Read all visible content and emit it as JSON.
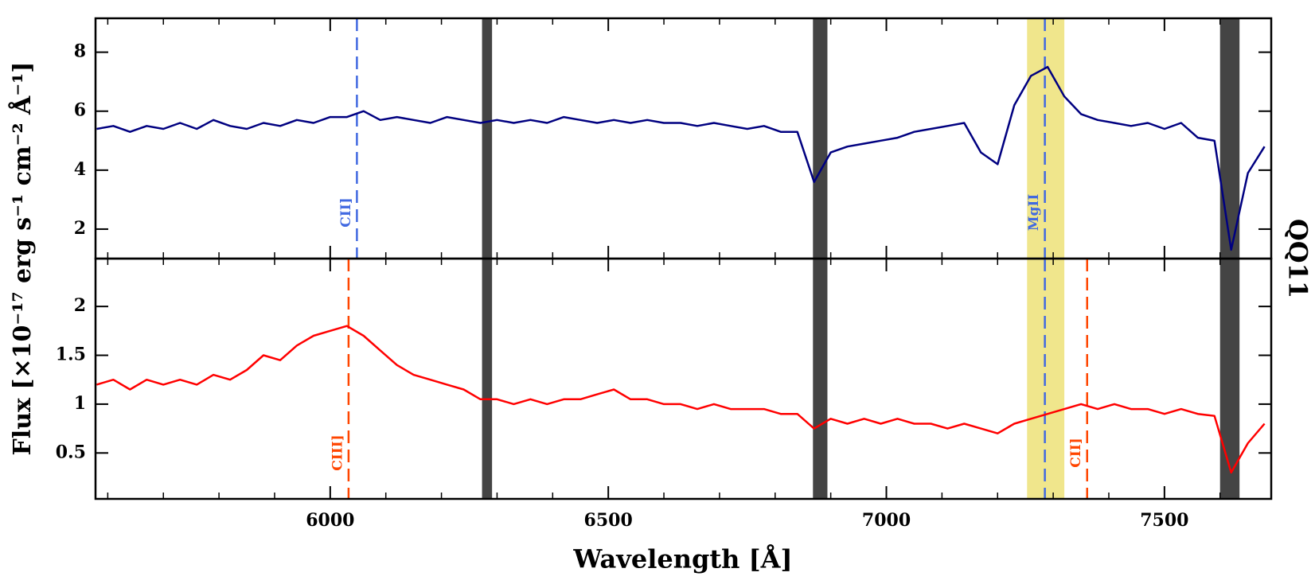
{
  "chart_data": [
    {
      "type": "line",
      "ylabel": "Flux [×10⁻¹⁷ erg s⁻¹ cm⁻² Å⁻¹]",
      "annotation": "QQ11",
      "ylim": [
        1.0,
        9.15
      ],
      "yticks": [
        2,
        4,
        6,
        8
      ],
      "x": [
        5580,
        5610,
        5640,
        5670,
        5700,
        5730,
        5760,
        5790,
        5820,
        5850,
        5880,
        5910,
        5940,
        5970,
        6000,
        6030,
        6060,
        6090,
        6120,
        6150,
        6180,
        6210,
        6240,
        6270,
        6300,
        6330,
        6360,
        6390,
        6420,
        6450,
        6480,
        6510,
        6540,
        6570,
        6600,
        6630,
        6660,
        6690,
        6720,
        6750,
        6780,
        6810,
        6840,
        6870,
        6900,
        6930,
        6960,
        6990,
        7020,
        7050,
        7080,
        7110,
        7140,
        7170,
        7200,
        7230,
        7260,
        7290,
        7320,
        7350,
        7380,
        7410,
        7440,
        7470,
        7500,
        7530,
        7560,
        7590,
        7620,
        7650,
        7680
      ],
      "series": [
        {
          "color": "#000080",
          "values": [
            5.4,
            5.5,
            5.3,
            5.5,
            5.4,
            5.6,
            5.4,
            5.7,
            5.5,
            5.4,
            5.6,
            5.5,
            5.7,
            5.6,
            5.8,
            5.8,
            6.0,
            5.7,
            5.8,
            5.7,
            5.6,
            5.8,
            5.7,
            5.6,
            5.7,
            5.6,
            5.7,
            5.6,
            5.8,
            5.7,
            5.6,
            5.7,
            5.6,
            5.7,
            5.6,
            5.6,
            5.5,
            5.6,
            5.5,
            5.4,
            5.5,
            5.3,
            5.3,
            3.6,
            4.6,
            4.8,
            4.9,
            5.0,
            5.1,
            5.3,
            5.4,
            5.5,
            5.6,
            4.6,
            4.2,
            6.2,
            7.2,
            7.5,
            6.5,
            5.9,
            5.7,
            5.6,
            5.5,
            5.6,
            5.4,
            5.6,
            5.1,
            5.0,
            1.3,
            3.9,
            4.8
          ]
        }
      ],
      "regions": [
        {
          "x": [
            6273,
            6291
          ],
          "color": "#444444"
        },
        {
          "x": [
            6868,
            6894
          ],
          "color": "#444444"
        },
        {
          "x": [
            7253,
            7320
          ],
          "color": "#f0e68c"
        },
        {
          "x": [
            7600,
            7635
          ],
          "color": "#444444"
        }
      ],
      "lines": [
        {
          "x": 6048,
          "label": "CII]",
          "color": "#4169e1"
        },
        {
          "x": 7285,
          "label": "MgII",
          "color": "#4169e1"
        }
      ]
    },
    {
      "type": "line",
      "xlabel": "Wavelength [Å]",
      "xlim": [
        5578,
        7692
      ],
      "xticks": [
        6000,
        6500,
        7000,
        7500
      ],
      "xminorticks": [
        5600,
        5700,
        5800,
        5900,
        6100,
        6200,
        6300,
        6400,
        6600,
        6700,
        6800,
        6900,
        7100,
        7200,
        7300,
        7400,
        7600
      ],
      "ylim": [
        0.03,
        2.49
      ],
      "yticks": [
        0.5,
        1,
        1.5,
        2
      ],
      "x": [
        5580,
        5610,
        5640,
        5670,
        5700,
        5730,
        5760,
        5790,
        5820,
        5850,
        5880,
        5910,
        5940,
        5970,
        6000,
        6030,
        6060,
        6090,
        6120,
        6150,
        6180,
        6210,
        6240,
        6270,
        6300,
        6330,
        6360,
        6390,
        6420,
        6450,
        6480,
        6510,
        6540,
        6570,
        6600,
        6630,
        6660,
        6690,
        6720,
        6750,
        6780,
        6810,
        6840,
        6870,
        6900,
        6930,
        6960,
        6990,
        7020,
        7050,
        7080,
        7110,
        7140,
        7170,
        7200,
        7230,
        7260,
        7290,
        7320,
        7350,
        7380,
        7410,
        7440,
        7470,
        7500,
        7530,
        7560,
        7590,
        7620,
        7650,
        7680
      ],
      "series": [
        {
          "color": "#ff0000",
          "values": [
            1.2,
            1.25,
            1.15,
            1.25,
            1.2,
            1.25,
            1.2,
            1.3,
            1.25,
            1.35,
            1.5,
            1.45,
            1.6,
            1.7,
            1.75,
            1.8,
            1.7,
            1.55,
            1.4,
            1.3,
            1.25,
            1.2,
            1.15,
            1.05,
            1.05,
            1.0,
            1.05,
            1.0,
            1.05,
            1.05,
            1.1,
            1.15,
            1.05,
            1.05,
            1.0,
            1.0,
            0.95,
            1.0,
            0.95,
            0.95,
            0.95,
            0.9,
            0.9,
            0.75,
            0.85,
            0.8,
            0.85,
            0.8,
            0.85,
            0.8,
            0.8,
            0.75,
            0.8,
            0.75,
            0.7,
            0.8,
            0.85,
            0.9,
            0.95,
            1.0,
            0.95,
            1.0,
            0.95,
            0.95,
            0.9,
            0.95,
            0.9,
            0.88,
            0.3,
            0.6,
            0.8
          ]
        }
      ],
      "lines": [
        {
          "x": 6033,
          "label": "CIII]",
          "color": "#ff4500"
        },
        {
          "x": 7285,
          "color": "#4169e1"
        },
        {
          "x": 7361,
          "label": "CII]",
          "color": "#ff4500"
        }
      ]
    }
  ]
}
